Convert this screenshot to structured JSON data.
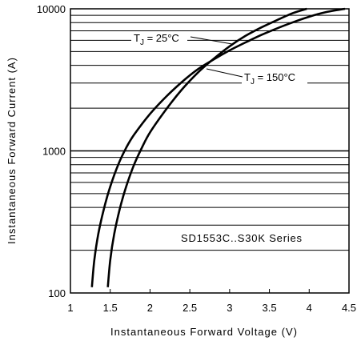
{
  "chart_data": {
    "type": "line",
    "xlabel": "Instantaneous Forward Voltage (V)",
    "ylabel": "Instantaneous Forward Current (A)",
    "xlim": [
      1,
      4.5
    ],
    "ylim": [
      100,
      10000
    ],
    "yscale": "log",
    "grid": "horizontal",
    "x_ticks": [
      "1",
      "1.5",
      "2",
      "2.5",
      "3",
      "3.5",
      "4",
      "4.5"
    ],
    "y_ticks": [
      "100",
      "1000",
      "10000"
    ],
    "series": [
      {
        "name": "T_J = 25°C",
        "x": [
          1.47,
          1.5,
          1.55,
          1.62,
          1.7,
          1.8,
          1.9,
          2.0,
          2.2,
          2.4,
          2.6,
          2.8,
          3.0,
          3.2,
          3.4,
          3.6,
          3.8,
          3.97
        ],
        "y": [
          110,
          170,
          260,
          390,
          560,
          800,
          1060,
          1350,
          1950,
          2700,
          3550,
          4450,
          5450,
          6450,
          7400,
          8350,
          9350,
          10000
        ]
      },
      {
        "name": "T_J = 150°C",
        "x": [
          1.27,
          1.3,
          1.35,
          1.42,
          1.5,
          1.6,
          1.7,
          1.8,
          2.0,
          2.2,
          2.4,
          2.6,
          2.8,
          3.0,
          3.2,
          3.4,
          3.6,
          3.8,
          4.0,
          4.2,
          4.45
        ],
        "y": [
          110,
          170,
          260,
          390,
          560,
          800,
          1050,
          1300,
          1820,
          2400,
          3050,
          3750,
          4400,
          5100,
          5800,
          6550,
          7300,
          8050,
          8800,
          9450,
          10000
        ]
      }
    ],
    "annotations": [
      {
        "label_prefix": "T",
        "label_sub": "J",
        "label_suffix": " = 25°C",
        "series": 0
      },
      {
        "label_prefix": "T",
        "label_sub": "J",
        "label_suffix": " = 150°C",
        "series": 1
      },
      {
        "text": "SD1553C..S30K Series"
      }
    ]
  }
}
